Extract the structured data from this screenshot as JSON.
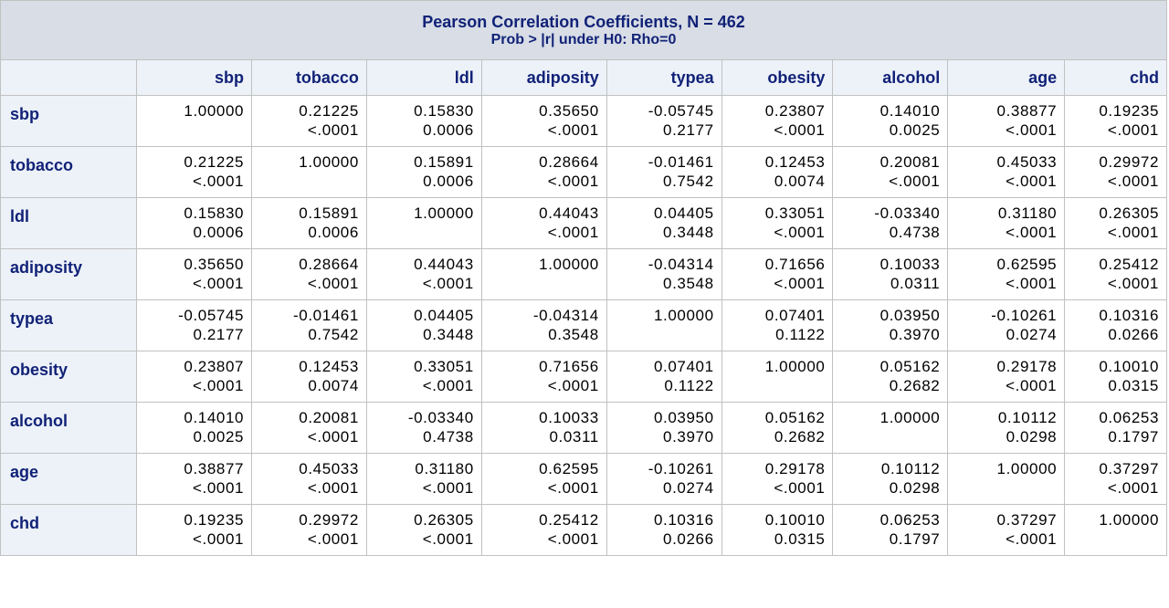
{
  "table": {
    "title": "Pearson Correlation Coefficients, N = 462",
    "subtitle": "Prob > |r| under H0: Rho=0",
    "columns": [
      "sbp",
      "tobacco",
      "ldl",
      "adiposity",
      "typea",
      "obesity",
      "alcohol",
      "age",
      "chd"
    ],
    "rows": [
      {
        "label": "sbp",
        "coef": [
          "1.00000",
          "0.21225",
          "0.15830",
          "0.35650",
          "-0.05745",
          "0.23807",
          "0.14010",
          "0.38877",
          "0.19235"
        ],
        "pval": [
          "",
          "<.0001",
          "0.0006",
          "<.0001",
          "0.2177",
          "<.0001",
          "0.0025",
          "<.0001",
          "<.0001"
        ]
      },
      {
        "label": "tobacco",
        "coef": [
          "0.21225",
          "1.00000",
          "0.15891",
          "0.28664",
          "-0.01461",
          "0.12453",
          "0.20081",
          "0.45033",
          "0.29972"
        ],
        "pval": [
          "<.0001",
          "",
          "0.0006",
          "<.0001",
          "0.7542",
          "0.0074",
          "<.0001",
          "<.0001",
          "<.0001"
        ]
      },
      {
        "label": "ldl",
        "coef": [
          "0.15830",
          "0.15891",
          "1.00000",
          "0.44043",
          "0.04405",
          "0.33051",
          "-0.03340",
          "0.31180",
          "0.26305"
        ],
        "pval": [
          "0.0006",
          "0.0006",
          "",
          "<.0001",
          "0.3448",
          "<.0001",
          "0.4738",
          "<.0001",
          "<.0001"
        ]
      },
      {
        "label": "adiposity",
        "coef": [
          "0.35650",
          "0.28664",
          "0.44043",
          "1.00000",
          "-0.04314",
          "0.71656",
          "0.10033",
          "0.62595",
          "0.25412"
        ],
        "pval": [
          "<.0001",
          "<.0001",
          "<.0001",
          "",
          "0.3548",
          "<.0001",
          "0.0311",
          "<.0001",
          "<.0001"
        ]
      },
      {
        "label": "typea",
        "coef": [
          "-0.05745",
          "-0.01461",
          "0.04405",
          "-0.04314",
          "1.00000",
          "0.07401",
          "0.03950",
          "-0.10261",
          "0.10316"
        ],
        "pval": [
          "0.2177",
          "0.7542",
          "0.3448",
          "0.3548",
          "",
          "0.1122",
          "0.3970",
          "0.0274",
          "0.0266"
        ]
      },
      {
        "label": "obesity",
        "coef": [
          "0.23807",
          "0.12453",
          "0.33051",
          "0.71656",
          "0.07401",
          "1.00000",
          "0.05162",
          "0.29178",
          "0.10010"
        ],
        "pval": [
          "<.0001",
          "0.0074",
          "<.0001",
          "<.0001",
          "0.1122",
          "",
          "0.2682",
          "<.0001",
          "0.0315"
        ]
      },
      {
        "label": "alcohol",
        "coef": [
          "0.14010",
          "0.20081",
          "-0.03340",
          "0.10033",
          "0.03950",
          "0.05162",
          "1.00000",
          "0.10112",
          "0.06253"
        ],
        "pval": [
          "0.0025",
          "<.0001",
          "0.4738",
          "0.0311",
          "0.3970",
          "0.2682",
          "",
          "0.0298",
          "0.1797"
        ]
      },
      {
        "label": "age",
        "coef": [
          "0.38877",
          "0.45033",
          "0.31180",
          "0.62595",
          "-0.10261",
          "0.29178",
          "0.10112",
          "1.00000",
          "0.37297"
        ],
        "pval": [
          "<.0001",
          "<.0001",
          "<.0001",
          "<.0001",
          "0.0274",
          "<.0001",
          "0.0298",
          "",
          "<.0001"
        ]
      },
      {
        "label": "chd",
        "coef": [
          "0.19235",
          "0.29972",
          "0.26305",
          "0.25412",
          "0.10316",
          "0.10010",
          "0.06253",
          "0.37297",
          "1.00000"
        ],
        "pval": [
          "<.0001",
          "<.0001",
          "<.0001",
          "<.0001",
          "0.0266",
          "0.0315",
          "0.1797",
          "<.0001",
          ""
        ]
      }
    ]
  },
  "colors": {
    "header_text": "#112277",
    "title_bg": "#d8dde6",
    "header_bg": "#edf2f9",
    "border": "#c1c1c1"
  }
}
